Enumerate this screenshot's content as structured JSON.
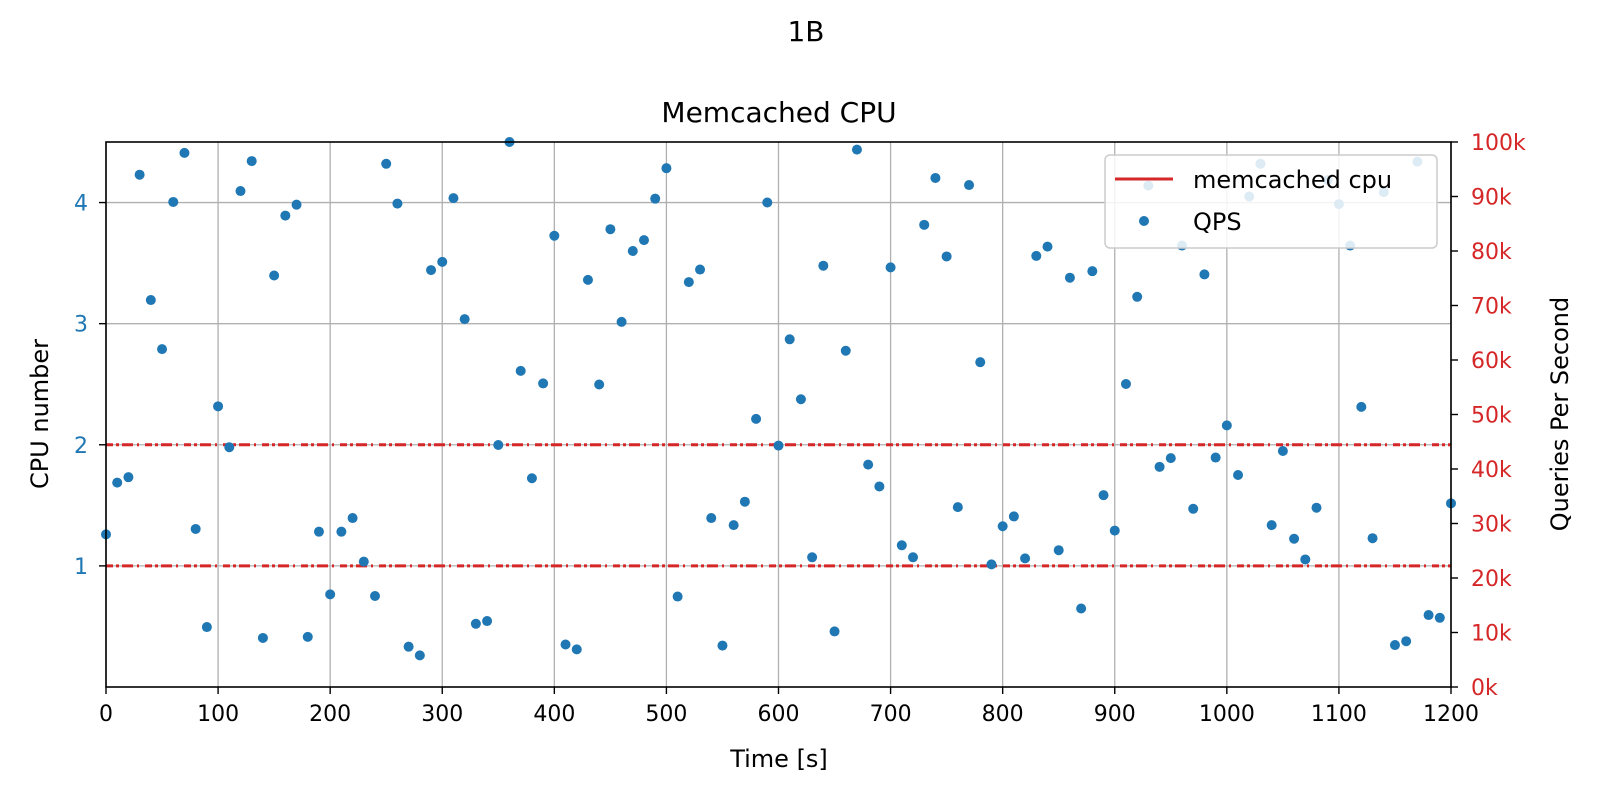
{
  "figure": {
    "suptitle": "1B"
  },
  "chart_data": {
    "type": "scatter",
    "title": "Memcached CPU",
    "xlabel": "Time [s]",
    "ylabel_left": "CPU number",
    "ylabel_right": "Queries Per Second",
    "xlim": [
      0,
      1200
    ],
    "ylim_left": [
      0,
      4.5
    ],
    "ylim_right": [
      0,
      100000
    ],
    "xticks": [
      0,
      100,
      200,
      300,
      400,
      500,
      600,
      700,
      800,
      900,
      1000,
      1100,
      1200
    ],
    "xtick_labels": [
      "0",
      "100",
      "200",
      "300",
      "400",
      "500",
      "600",
      "700",
      "800",
      "900",
      "1000",
      "1100",
      "1200"
    ],
    "yticks_left": [
      1,
      2,
      3,
      4
    ],
    "ytick_labels_left": [
      "1",
      "2",
      "3",
      "4"
    ],
    "yticks_right": [
      0,
      10000,
      20000,
      30000,
      40000,
      50000,
      60000,
      70000,
      80000,
      90000,
      100000
    ],
    "ytick_labels_right": [
      "0k",
      "10k",
      "20k",
      "30k",
      "40k",
      "50k",
      "60k",
      "70k",
      "80k",
      "90k",
      "100k"
    ],
    "grid": true,
    "legend_placement": "upper-right",
    "left_axis_color": "#1f77b4",
    "right_axis_color": "#d62728",
    "series": [
      {
        "name": "memcached cpu",
        "kind": "dashed-line",
        "axis": "left",
        "color": "#d62728",
        "levels": [
          1,
          2
        ],
        "x_range": [
          0,
          1200
        ]
      },
      {
        "name": "QPS",
        "kind": "points",
        "axis": "right",
        "color": "#1f77b4",
        "x": [
          0,
          10,
          20,
          30,
          40,
          50,
          60,
          70,
          80,
          90,
          100,
          110,
          120,
          130,
          140,
          150,
          160,
          170,
          180,
          190,
          200,
          210,
          220,
          230,
          240,
          250,
          260,
          270,
          280,
          290,
          300,
          310,
          320,
          330,
          340,
          350,
          360,
          370,
          380,
          390,
          400,
          410,
          420,
          430,
          440,
          450,
          460,
          470,
          480,
          490,
          500,
          510,
          520,
          530,
          540,
          550,
          560,
          570,
          580,
          590,
          600,
          610,
          620,
          630,
          640,
          650,
          660,
          670,
          680,
          690,
          700,
          710,
          720,
          730,
          740,
          750,
          760,
          770,
          780,
          790,
          800,
          810,
          820,
          830,
          840,
          850,
          860,
          870,
          880,
          890,
          900,
          910,
          920,
          930,
          940,
          950,
          960,
          970,
          980,
          990,
          1000,
          1010,
          1020,
          1030,
          1040,
          1050,
          1060,
          1070,
          1080,
          1090,
          1100,
          1110,
          1120,
          1130,
          1140,
          1150,
          1160,
          1170,
          1180,
          1190,
          1200
        ],
        "y": [
          28000,
          37500,
          38500,
          94000,
          71000,
          62000,
          89000,
          98000,
          29000,
          11000,
          51500,
          44000,
          91000,
          96500,
          9000,
          75500,
          86500,
          88500,
          9200,
          28500,
          17000,
          28500,
          31000,
          23000,
          16700,
          96000,
          88700,
          7400,
          5800,
          76500,
          78000,
          89700,
          67500,
          11600,
          12100,
          44400,
          100000,
          58000,
          38300,
          55700,
          82800,
          7800,
          6900,
          74700,
          55500,
          84000,
          67000,
          80000,
          82000,
          89600,
          95200,
          16600,
          74300,
          76600,
          31000,
          7600,
          29700,
          34000,
          49200,
          88900,
          44300,
          63800,
          52800,
          23800,
          77300,
          10200,
          61700,
          98600,
          40800,
          36800,
          77000,
          26000,
          23800,
          84800,
          93400,
          79000,
          33000,
          92100,
          59600,
          22500,
          29500,
          31300,
          23600,
          79100,
          80800,
          25100,
          75100,
          14400,
          76300,
          35200,
          28700,
          55600,
          71600,
          92000,
          40400,
          42000,
          81000,
          32700,
          75700,
          42100,
          48000,
          38900,
          90000,
          96000,
          29700,
          43300,
          27200,
          23400,
          32900,
          93000,
          88600,
          81000,
          51400,
          27300,
          90800,
          7700,
          8400,
          96400,
          13200,
          12700,
          33700
        ]
      }
    ]
  }
}
